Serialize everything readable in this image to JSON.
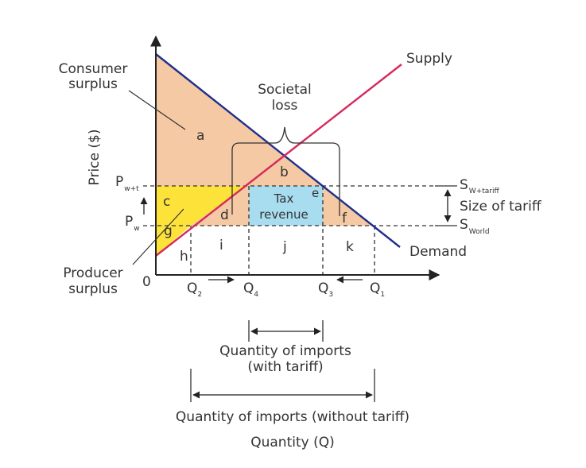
{
  "colors": {
    "consumer_surplus": "#f5c9a4",
    "producer_surplus": "#fde23a",
    "tax_revenue": "#a8dcef",
    "demand_line": "#1f2f8c",
    "supply_line": "#d42a5b",
    "axis": "#222222"
  },
  "axes": {
    "y_label": "Price ($)",
    "x_label": "Quantity (Q)",
    "origin": "0"
  },
  "curves": {
    "supply": "Supply",
    "demand": "Demand"
  },
  "prices": {
    "p_tariff_main": "P",
    "p_tariff_sub": "w+t",
    "p_world_main": "P",
    "p_world_sub": "w"
  },
  "right_labels": {
    "s_tariff_main": "S",
    "s_tariff_sub": "W+tariff",
    "size_of_tariff": "Size of tariff",
    "s_world_main": "S",
    "s_world_sub": "World"
  },
  "quantities": {
    "q2_main": "Q",
    "q2_sub": "2",
    "q4_main": "Q",
    "q4_sub": "4",
    "q3_main": "Q",
    "q3_sub": "3",
    "q1_main": "Q",
    "q1_sub": "1"
  },
  "areas": {
    "a": "a",
    "b": "b",
    "c": "c",
    "d": "d",
    "e": "e",
    "f": "f",
    "g": "g",
    "h": "h",
    "i": "i",
    "j": "j",
    "k": "k"
  },
  "annotations": {
    "consumer_surplus_line1": "Consumer",
    "consumer_surplus_line2": "surplus",
    "producer_surplus_line1": "Producer",
    "producer_surplus_line2": "surplus",
    "societal_loss_line1": "Societal",
    "societal_loss_line2": "loss",
    "tax_revenue_line1": "Tax",
    "tax_revenue_line2": "revenue",
    "imports_with_tariff_line1": "Quantity of imports",
    "imports_with_tariff_line2": "(with tariff)",
    "imports_without_tariff": "Quantity of imports (without tariff)"
  }
}
